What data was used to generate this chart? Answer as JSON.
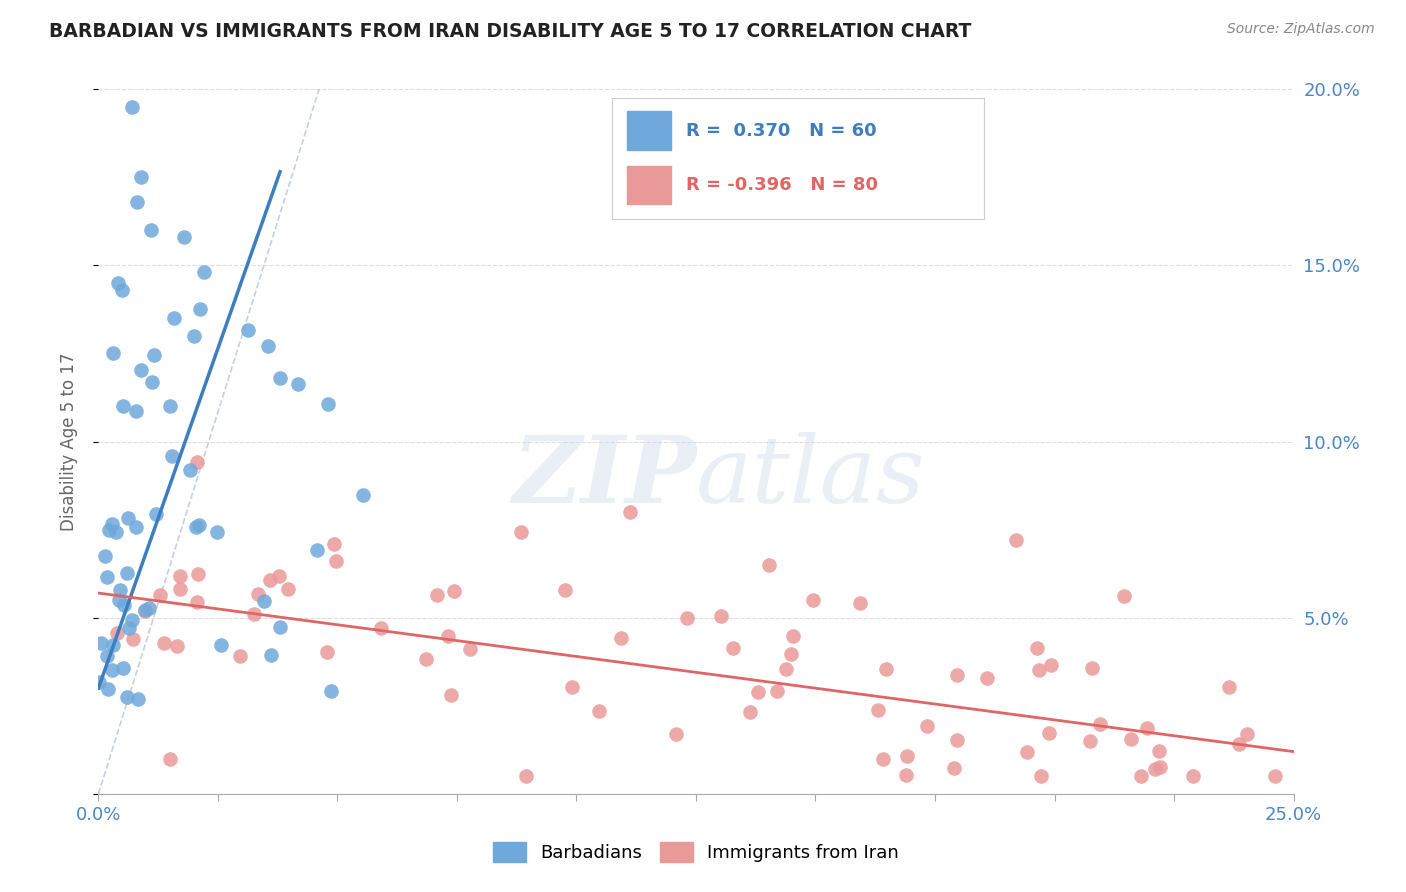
{
  "title": "BARBADIAN VS IMMIGRANTS FROM IRAN DISABILITY AGE 5 TO 17 CORRELATION CHART",
  "source": "Source: ZipAtlas.com",
  "yaxis_label": "Disability Age 5 to 17",
  "legend1_r": "0.370",
  "legend1_n": "60",
  "legend2_r": "-0.396",
  "legend2_n": "80",
  "blue_color": "#6fa8dc",
  "pink_color": "#ea9999",
  "blue_line_color": "#3d7ebf",
  "pink_line_color": "#e06666",
  "diag_color": "#b8c4d8",
  "watermark_color": "#d0dce8",
  "title_color": "#222222",
  "source_color": "#888888",
  "axis_label_color": "#4a86c8",
  "ylabel_color": "#666666"
}
